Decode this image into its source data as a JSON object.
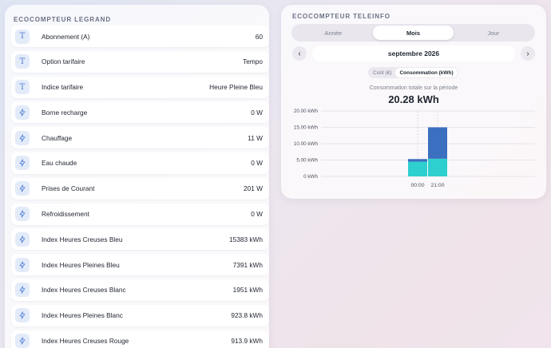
{
  "legrand": {
    "title": "ECOCOMPTEUR LEGRAND",
    "rows": [
      {
        "icon": "text-icon",
        "label": "Abonnement (A)",
        "value": "60"
      },
      {
        "icon": "text-icon",
        "label": "Option tarifaire",
        "value": "Tempo"
      },
      {
        "icon": "text-icon",
        "label": "Indice tarifaire",
        "value": "Heure Pleine Bleu"
      },
      {
        "icon": "lightning-icon",
        "label": "Borne recharge",
        "value": "0 W"
      },
      {
        "icon": "lightning-icon",
        "label": "Chauffage",
        "value": "11 W"
      },
      {
        "icon": "lightning-icon",
        "label": "Eau chaude",
        "value": "0 W"
      },
      {
        "icon": "lightning-icon",
        "label": "Prises de Courant",
        "value": "201 W"
      },
      {
        "icon": "lightning-icon",
        "label": "Refroidissement",
        "value": "0 W"
      },
      {
        "icon": "lightning-icon",
        "label": "Index Heures Creuses Bleu",
        "value": "15383 kWh"
      },
      {
        "icon": "lightning-icon",
        "label": "Index Heures Pleines Bleu",
        "value": "7391 kWh"
      },
      {
        "icon": "lightning-icon",
        "label": "Index Heures Creuses Blanc",
        "value": "1951 kWh"
      },
      {
        "icon": "lightning-icon",
        "label": "Index Heures Pleines Blanc",
        "value": "923.8 kWh"
      },
      {
        "icon": "lightning-icon",
        "label": "Index Heures Creuses Rouge",
        "value": "913.9 kWh"
      }
    ]
  },
  "teleinfo": {
    "title": "ECOCOMPTEUR TELEINFO",
    "tabs": [
      {
        "label": "Année",
        "active": false
      },
      {
        "label": "Mois",
        "active": true
      },
      {
        "label": "Jour",
        "active": false
      }
    ],
    "prev_symbol": "‹",
    "next_symbol": "›",
    "period": "septembre 2026",
    "modes": [
      {
        "label": "Coût (€)",
        "active": false
      },
      {
        "label": "Consommation (kWh)",
        "active": true
      }
    ],
    "total_label": "Consommation totale sur la période",
    "total_value": "20.28 kWh"
  },
  "colors": {
    "bar_low": "#2ecfcf",
    "bar_high": "#3b6fbf",
    "icon_bg": "#e3ebf9",
    "icon_fg": "#4f7fd6"
  },
  "chart_data": {
    "type": "bar",
    "stacked": true,
    "categories": [
      "00:00",
      "21:00"
    ],
    "series": [
      {
        "values": [
          4.5,
          5.4
        ]
      },
      {
        "values": [
          0.8,
          9.6
        ]
      }
    ],
    "ytick_labels": [
      "0 kWh",
      "5.00 kWh",
      "10.00 kWh",
      "15.00 kWh",
      "20.00 kWh"
    ],
    "yticks": [
      0,
      5,
      10,
      15,
      20
    ],
    "ylim": [
      0,
      20
    ],
    "grid": true
  }
}
